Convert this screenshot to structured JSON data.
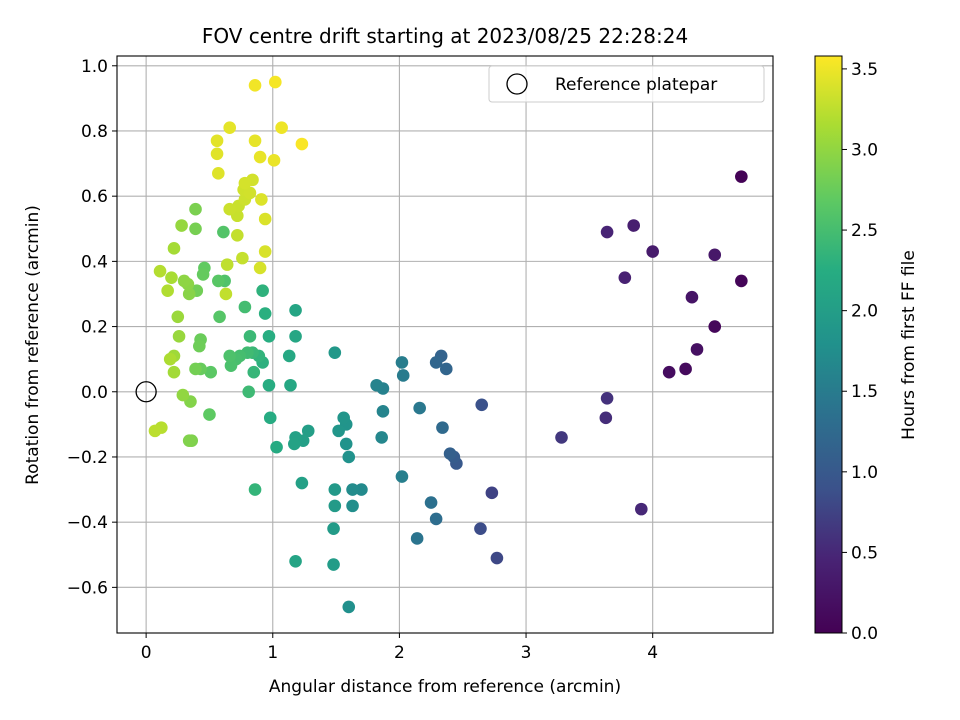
{
  "chart_data": {
    "type": "scatter",
    "title": "FOV centre drift starting at 2023/08/25 22:28:24",
    "xlabel": "Angular distance from reference (arcmin)",
    "ylabel": "Rotation from reference (arcmin)",
    "xlim": [
      -0.23,
      4.95
    ],
    "ylim": [
      -0.74,
      1.03
    ],
    "xticks": [
      0,
      1,
      2,
      3,
      4
    ],
    "xtick_labels": [
      "0",
      "1",
      "2",
      "3",
      "4"
    ],
    "yticks": [
      -0.6,
      -0.4,
      -0.2,
      0.0,
      0.2,
      0.4,
      0.6,
      0.8,
      1.0
    ],
    "ytick_labels": [
      "−0.6",
      "−0.4",
      "−0.2",
      "0.0",
      "0.2",
      "0.4",
      "0.6",
      "0.8",
      "1.0"
    ],
    "grid": true,
    "legend": {
      "location": "upper right",
      "entries": [
        "Reference platepar"
      ]
    },
    "reference_point": {
      "name": "Reference platepar",
      "x": 0.0,
      "y": 0.0
    },
    "colorbar": {
      "label": "Hours from first FF file",
      "colormap": "viridis",
      "range": [
        0.0,
        3.58
      ],
      "ticks": [
        0.0,
        0.5,
        1.0,
        1.5,
        2.0,
        2.5,
        3.0,
        3.5
      ],
      "tick_labels": [
        "0.0",
        "0.5",
        "1.0",
        "1.5",
        "2.0",
        "2.5",
        "3.0",
        "3.5"
      ]
    },
    "points": [
      {
        "x": 4.7,
        "y": 0.66,
        "t": 0.03
      },
      {
        "x": 4.7,
        "y": 0.34,
        "t": 0.05
      },
      {
        "x": 4.49,
        "y": 0.2,
        "t": 0.08
      },
      {
        "x": 4.26,
        "y": 0.07,
        "t": 0.12
      },
      {
        "x": 4.13,
        "y": 0.06,
        "t": 0.15
      },
      {
        "x": 4.35,
        "y": 0.13,
        "t": 0.2
      },
      {
        "x": 4.31,
        "y": 0.29,
        "t": 0.25
      },
      {
        "x": 4.49,
        "y": 0.42,
        "t": 0.3
      },
      {
        "x": 4.0,
        "y": 0.43,
        "t": 0.34
      },
      {
        "x": 3.85,
        "y": 0.51,
        "t": 0.38
      },
      {
        "x": 3.78,
        "y": 0.35,
        "t": 0.42
      },
      {
        "x": 3.64,
        "y": 0.49,
        "t": 0.46
      },
      {
        "x": 3.91,
        "y": -0.36,
        "t": 0.5
      },
      {
        "x": 3.63,
        "y": -0.08,
        "t": 0.55
      },
      {
        "x": 3.64,
        "y": -0.02,
        "t": 0.6
      },
      {
        "x": 3.28,
        "y": -0.14,
        "t": 0.65
      },
      {
        "x": 2.73,
        "y": -0.31,
        "t": 0.75
      },
      {
        "x": 2.77,
        "y": -0.51,
        "t": 0.8
      },
      {
        "x": 2.64,
        "y": -0.42,
        "t": 0.85
      },
      {
        "x": 2.65,
        "y": -0.04,
        "t": 0.9
      },
      {
        "x": 2.45,
        "y": -0.22,
        "t": 1.0
      },
      {
        "x": 2.43,
        "y": -0.2,
        "t": 1.05
      },
      {
        "x": 2.4,
        "y": -0.19,
        "t": 1.1
      },
      {
        "x": 2.33,
        "y": 0.11,
        "t": 1.15
      },
      {
        "x": 2.37,
        "y": 0.07,
        "t": 1.18
      },
      {
        "x": 2.29,
        "y": 0.09,
        "t": 1.2
      },
      {
        "x": 2.34,
        "y": -0.11,
        "t": 1.25
      },
      {
        "x": 2.29,
        "y": -0.39,
        "t": 1.3
      },
      {
        "x": 2.25,
        "y": -0.34,
        "t": 1.35
      },
      {
        "x": 2.14,
        "y": -0.45,
        "t": 1.4
      },
      {
        "x": 2.16,
        "y": -0.05,
        "t": 1.45
      },
      {
        "x": 2.03,
        "y": 0.05,
        "t": 1.5
      },
      {
        "x": 2.02,
        "y": 0.09,
        "t": 1.52
      },
      {
        "x": 2.02,
        "y": -0.26,
        "t": 1.55
      },
      {
        "x": 1.87,
        "y": 0.01,
        "t": 1.58
      },
      {
        "x": 1.82,
        "y": 0.02,
        "t": 1.6
      },
      {
        "x": 1.87,
        "y": -0.06,
        "t": 1.62
      },
      {
        "x": 1.86,
        "y": -0.14,
        "t": 1.65
      },
      {
        "x": 1.7,
        "y": -0.3,
        "t": 1.7
      },
      {
        "x": 1.63,
        "y": -0.3,
        "t": 1.72
      },
      {
        "x": 1.63,
        "y": -0.35,
        "t": 1.75
      },
      {
        "x": 1.6,
        "y": -0.66,
        "t": 1.78
      },
      {
        "x": 1.6,
        "y": -0.2,
        "t": 1.8
      },
      {
        "x": 1.58,
        "y": -0.16,
        "t": 1.82
      },
      {
        "x": 1.58,
        "y": -0.1,
        "t": 1.84
      },
      {
        "x": 1.56,
        "y": -0.08,
        "t": 1.86
      },
      {
        "x": 1.52,
        "y": -0.12,
        "t": 1.88
      },
      {
        "x": 1.49,
        "y": 0.12,
        "t": 1.9
      },
      {
        "x": 1.49,
        "y": -0.3,
        "t": 1.92
      },
      {
        "x": 1.49,
        "y": -0.35,
        "t": 1.94
      },
      {
        "x": 1.48,
        "y": -0.42,
        "t": 1.96
      },
      {
        "x": 1.48,
        "y": -0.53,
        "t": 1.98
      },
      {
        "x": 1.28,
        "y": -0.12,
        "t": 2.0
      },
      {
        "x": 1.24,
        "y": -0.15,
        "t": 2.02
      },
      {
        "x": 1.23,
        "y": -0.28,
        "t": 2.04
      },
      {
        "x": 1.18,
        "y": -0.14,
        "t": 2.06
      },
      {
        "x": 1.17,
        "y": -0.16,
        "t": 2.08
      },
      {
        "x": 1.18,
        "y": -0.52,
        "t": 2.1
      },
      {
        "x": 1.18,
        "y": 0.25,
        "t": 2.12
      },
      {
        "x": 1.18,
        "y": 0.17,
        "t": 2.14
      },
      {
        "x": 1.14,
        "y": 0.02,
        "t": 2.16
      },
      {
        "x": 1.13,
        "y": 0.11,
        "t": 2.18
      },
      {
        "x": 1.03,
        "y": -0.17,
        "t": 2.2
      },
      {
        "x": 0.98,
        "y": -0.08,
        "t": 2.22
      },
      {
        "x": 0.97,
        "y": 0.02,
        "t": 2.24
      },
      {
        "x": 0.97,
        "y": 0.17,
        "t": 2.26
      },
      {
        "x": 0.94,
        "y": 0.24,
        "t": 2.28
      },
      {
        "x": 0.92,
        "y": 0.09,
        "t": 2.3
      },
      {
        "x": 0.92,
        "y": 0.31,
        "t": 2.32
      },
      {
        "x": 0.89,
        "y": 0.11,
        "t": 2.34
      },
      {
        "x": 0.86,
        "y": -0.3,
        "t": 2.36
      },
      {
        "x": 0.85,
        "y": 0.06,
        "t": 2.38
      },
      {
        "x": 0.84,
        "y": 0.12,
        "t": 2.4
      },
      {
        "x": 0.82,
        "y": 0.17,
        "t": 2.42
      },
      {
        "x": 0.81,
        "y": 0.0,
        "t": 2.44
      },
      {
        "x": 0.8,
        "y": 0.12,
        "t": 2.46
      },
      {
        "x": 0.78,
        "y": 0.26,
        "t": 2.48
      },
      {
        "x": 0.74,
        "y": 0.11,
        "t": 2.5
      },
      {
        "x": 0.71,
        "y": 0.1,
        "t": 2.52
      },
      {
        "x": 0.67,
        "y": 0.08,
        "t": 2.54
      },
      {
        "x": 0.66,
        "y": 0.11,
        "t": 2.56
      },
      {
        "x": 0.62,
        "y": 0.34,
        "t": 2.58
      },
      {
        "x": 0.61,
        "y": 0.49,
        "t": 2.6
      },
      {
        "x": 0.58,
        "y": 0.23,
        "t": 2.62
      },
      {
        "x": 0.57,
        "y": 0.34,
        "t": 2.64
      },
      {
        "x": 0.51,
        "y": 0.06,
        "t": 2.66
      },
      {
        "x": 0.5,
        "y": -0.07,
        "t": 2.68
      },
      {
        "x": 0.46,
        "y": 0.38,
        "t": 2.7
      },
      {
        "x": 0.45,
        "y": 0.36,
        "t": 2.72
      },
      {
        "x": 0.43,
        "y": 0.07,
        "t": 2.74
      },
      {
        "x": 0.43,
        "y": 0.16,
        "t": 2.76
      },
      {
        "x": 0.42,
        "y": 0.14,
        "t": 2.78
      },
      {
        "x": 0.4,
        "y": 0.31,
        "t": 2.8
      },
      {
        "x": 0.39,
        "y": 0.07,
        "t": 2.82
      },
      {
        "x": 0.39,
        "y": 0.5,
        "t": 2.84
      },
      {
        "x": 0.39,
        "y": 0.56,
        "t": 2.86
      },
      {
        "x": 0.36,
        "y": -0.15,
        "t": 2.88
      },
      {
        "x": 0.34,
        "y": -0.15,
        "t": 2.9
      },
      {
        "x": 0.35,
        "y": -0.03,
        "t": 2.92
      },
      {
        "x": 0.34,
        "y": 0.3,
        "t": 2.94
      },
      {
        "x": 0.33,
        "y": 0.33,
        "t": 2.96
      },
      {
        "x": 0.3,
        "y": 0.34,
        "t": 2.98
      },
      {
        "x": 0.29,
        "y": -0.01,
        "t": 3.0
      },
      {
        "x": 0.28,
        "y": 0.51,
        "t": 3.02
      },
      {
        "x": 0.26,
        "y": 0.17,
        "t": 3.04
      },
      {
        "x": 0.25,
        "y": 0.23,
        "t": 3.06
      },
      {
        "x": 0.22,
        "y": 0.11,
        "t": 3.08
      },
      {
        "x": 0.22,
        "y": 0.06,
        "t": 3.1
      },
      {
        "x": 0.22,
        "y": 0.44,
        "t": 3.12
      },
      {
        "x": 0.2,
        "y": 0.35,
        "t": 3.14
      },
      {
        "x": 0.19,
        "y": 0.1,
        "t": 3.16
      },
      {
        "x": 0.17,
        "y": 0.31,
        "t": 3.18
      },
      {
        "x": 0.11,
        "y": 0.37,
        "t": 3.2
      },
      {
        "x": 0.12,
        "y": -0.11,
        "t": 3.22
      },
      {
        "x": 0.07,
        "y": -0.12,
        "t": 3.24
      },
      {
        "x": 0.64,
        "y": 0.39,
        "t": 3.26
      },
      {
        "x": 0.63,
        "y": 0.3,
        "t": 3.27
      },
      {
        "x": 0.72,
        "y": 0.48,
        "t": 3.28
      },
      {
        "x": 0.76,
        "y": 0.41,
        "t": 3.29
      },
      {
        "x": 0.72,
        "y": 0.54,
        "t": 3.3
      },
      {
        "x": 0.73,
        "y": 0.57,
        "t": 3.31
      },
      {
        "x": 0.66,
        "y": 0.56,
        "t": 3.32
      },
      {
        "x": 0.78,
        "y": 0.59,
        "t": 3.33
      },
      {
        "x": 0.77,
        "y": 0.62,
        "t": 3.34
      },
      {
        "x": 0.82,
        "y": 0.61,
        "t": 3.35
      },
      {
        "x": 0.84,
        "y": 0.65,
        "t": 3.36
      },
      {
        "x": 0.78,
        "y": 0.64,
        "t": 3.37
      },
      {
        "x": 0.9,
        "y": 0.38,
        "t": 3.38
      },
      {
        "x": 0.94,
        "y": 0.43,
        "t": 3.39
      },
      {
        "x": 0.94,
        "y": 0.53,
        "t": 3.4
      },
      {
        "x": 0.91,
        "y": 0.59,
        "t": 3.41
      },
      {
        "x": 0.57,
        "y": 0.67,
        "t": 3.42
      },
      {
        "x": 0.56,
        "y": 0.73,
        "t": 3.43
      },
      {
        "x": 0.56,
        "y": 0.77,
        "t": 3.44
      },
      {
        "x": 0.66,
        "y": 0.81,
        "t": 3.45
      },
      {
        "x": 0.86,
        "y": 0.77,
        "t": 3.46
      },
      {
        "x": 0.9,
        "y": 0.72,
        "t": 3.47
      },
      {
        "x": 1.01,
        "y": 0.71,
        "t": 3.48
      },
      {
        "x": 1.07,
        "y": 0.81,
        "t": 3.5
      },
      {
        "x": 0.86,
        "y": 0.94,
        "t": 3.52
      },
      {
        "x": 1.02,
        "y": 0.95,
        "t": 3.54
      },
      {
        "x": 1.23,
        "y": 0.76,
        "t": 3.56
      }
    ]
  }
}
